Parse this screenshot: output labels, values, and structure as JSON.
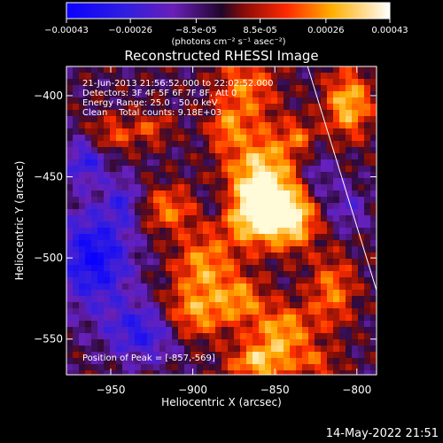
{
  "colorbar": {
    "ticks": [
      "-0.00043",
      "-0.00026",
      "-8.5e-05",
      "8.5e-05",
      "0.00026",
      "0.00043"
    ],
    "unit_label": "(photons cm⁻² s⁻¹ asec⁻²)"
  },
  "chart_data": {
    "type": "heatmap",
    "title": "Reconstructed RHESSI Image",
    "xlabel": "Heliocentric X (arcsec)",
    "ylabel": "Heliocentric Y (arcsec)",
    "xlim": [
      -977,
      -788
    ],
    "ylim": [
      -572,
      -382
    ],
    "x_ticks": [
      -950,
      -900,
      -850,
      -800
    ],
    "y_ticks": [
      -400,
      -450,
      -500,
      -550
    ],
    "x_tick_labels": [
      "−950",
      "−900",
      "−850",
      "−800"
    ],
    "y_tick_labels": [
      "−400",
      "−450",
      "−500",
      "−550"
    ],
    "colorbar_range": [
      -0.00043,
      0.00043
    ],
    "limb_line": [
      [
        -830,
        -382
      ],
      [
        -788,
        -520
      ]
    ],
    "annotations": [
      "21-Jun-2013 21:56:52.000 to 22:02:52.000",
      "Detectors: 3F 4F 5F 6F 7F 8F, Att 0",
      "Energy Range: 25.0 - 50.0 keV",
      "Clean    Total counts: 9.18E+03"
    ],
    "peak_label": "Position of Peak = [-857,-569]",
    "peak": [
      -857,
      -569
    ]
  },
  "footer": {
    "timestamp": "14-May-2022 21:51"
  }
}
